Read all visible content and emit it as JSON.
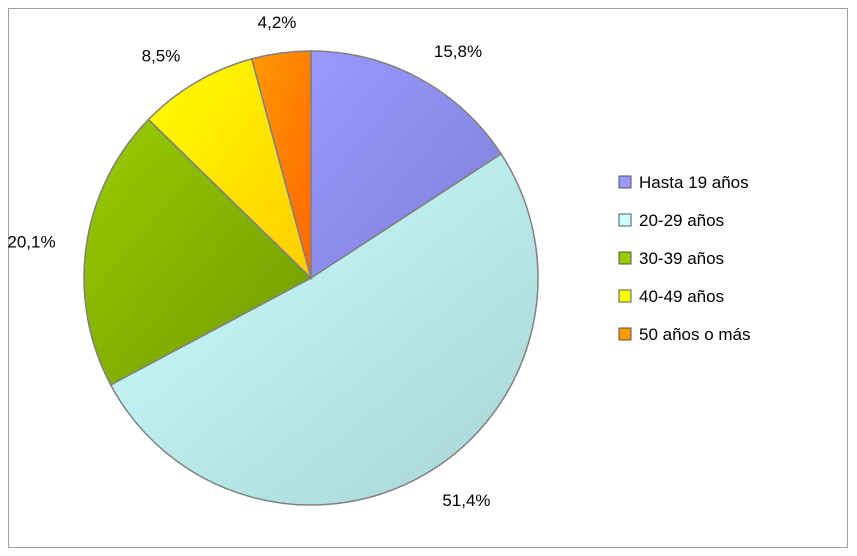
{
  "chart_data": {
    "type": "pie",
    "slices": [
      {
        "label": "Hasta 19 años",
        "value": 15.8,
        "display": "15,8%",
        "color": "#9999ff",
        "shade": "#7f7fd9"
      },
      {
        "label": "20-29 años",
        "value": 51.4,
        "display": "51,4%",
        "color": "#ccffff",
        "shade": "#a9d4d6"
      },
      {
        "label": "30-39 años",
        "value": 20.1,
        "display": "20,1%",
        "color": "#99cc00",
        "shade": "#6f9a00"
      },
      {
        "label": "40-49 años",
        "value": 8.5,
        "display": "8,5%",
        "color": "#ffff00",
        "shade": "#ffcc00"
      },
      {
        "label": "50 años o más",
        "value": 4.2,
        "display": "4,2%",
        "color": "#ff9900",
        "shade": "#ff6600"
      }
    ],
    "start_angle_deg": 0,
    "direction": "clockwise",
    "legend_position": "right"
  }
}
